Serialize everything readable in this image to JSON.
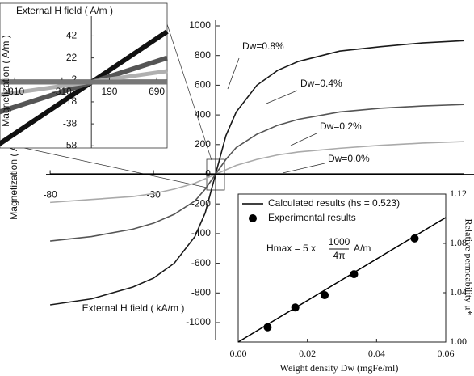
{
  "chart_data": [
    {
      "type": "line",
      "y_label": "Magnetization ( A/m )",
      "x_label": "External H field ( kA/m )",
      "x": [
        -80,
        -60,
        -40,
        -30,
        -20,
        -10,
        -5,
        0,
        5,
        10,
        20,
        30,
        40,
        60,
        80,
        100,
        120
      ],
      "series": [
        {
          "name": "Dw=0.8%",
          "color": "#1a1a1a",
          "values": [
            -880,
            -840,
            -760,
            -700,
            -600,
            -420,
            -260,
            0,
            260,
            420,
            600,
            700,
            760,
            830,
            860,
            885,
            900
          ]
        },
        {
          "name": "Dw=0.4%",
          "color": "#555555",
          "values": [
            -450,
            -420,
            -370,
            -330,
            -270,
            -180,
            -100,
            0,
            100,
            180,
            270,
            330,
            370,
            420,
            445,
            460,
            470
          ]
        },
        {
          "name": "Dw=0.2%",
          "color": "#aaaaaa",
          "values": [
            -190,
            -170,
            -150,
            -130,
            -100,
            -60,
            -30,
            0,
            30,
            60,
            100,
            130,
            150,
            175,
            195,
            210,
            220
          ]
        },
        {
          "name": "Dw=0.0%",
          "color": "#000000",
          "values": [
            0,
            0,
            0,
            0,
            0,
            0,
            0,
            0,
            0,
            0,
            0,
            0,
            0,
            0,
            0,
            0,
            0
          ]
        }
      ],
      "xlim": [
        -82,
        125
      ],
      "xticks": [
        -80,
        -30
      ],
      "ylim": [
        -1000,
        1000
      ],
      "yticks": [
        1000,
        800,
        600,
        400,
        200,
        0,
        -200,
        -400,
        -600,
        -800,
        -1000
      ]
    },
    {
      "type": "line",
      "title": "External H field ( A/m )",
      "y_label": "Magnetization ( A/m )",
      "x": [
        -1000,
        800
      ],
      "series": [
        {
          "name": "Dw=0.8%",
          "color": "#111111",
          "values": [
            -58,
            46
          ]
        },
        {
          "name": "Dw=0.4%",
          "color": "#555555",
          "values": [
            -28,
            22
          ]
        },
        {
          "name": "Dw=0.2%",
          "color": "#b0b0b0",
          "values": [
            -12,
            10
          ]
        },
        {
          "name": "Dw=0.0%",
          "color": "#777777",
          "values": [
            0,
            0
          ]
        }
      ],
      "xlim": [
        -965,
        800
      ],
      "xticks": [
        -810,
        -310,
        190,
        690
      ],
      "ylim": [
        -60,
        60
      ],
      "yticks": [
        42,
        22,
        2,
        -18,
        -38,
        -58
      ]
    },
    {
      "type": "scatter",
      "x_label": "Weight density Dw (mgFe/ml)",
      "y2_label": "Relative permeability μ*",
      "formula": [
        "Hmax = 5 x",
        "1000",
        "4π",
        "A/m"
      ],
      "series": [
        {
          "name": "Calculated results (hs = 0.523)",
          "color": "#000000",
          "style": "line",
          "axis": "y2",
          "x": [
            0,
            0.06
          ],
          "values": [
            1.0,
            1.101
          ]
        },
        {
          "name": "Experimental results",
          "color": "#000000",
          "style": "marker",
          "axis": "y2",
          "x": [
            0.0085,
            0.0165,
            0.025,
            0.0335,
            0.051
          ],
          "values": [
            1.012,
            1.028,
            1.038,
            1.055,
            1.084
          ]
        }
      ],
      "xlim": [
        0,
        0.06
      ],
      "xticks": [
        {
          "value": 0,
          "label": "0.00"
        },
        {
          "value": 0.02,
          "label": "0.02"
        },
        {
          "value": 0.04,
          "label": "0.04"
        },
        {
          "value": 0.06,
          "label": "0.06"
        }
      ],
      "y2lim": [
        1.0,
        1.12
      ],
      "y2ticks": [
        {
          "value": 1.0,
          "label": "1.00"
        },
        {
          "value": 1.04,
          "label": "1.04"
        },
        {
          "value": 1.08,
          "label": "1.08"
        },
        {
          "value": 1.12,
          "label": "1.12"
        }
      ]
    }
  ]
}
